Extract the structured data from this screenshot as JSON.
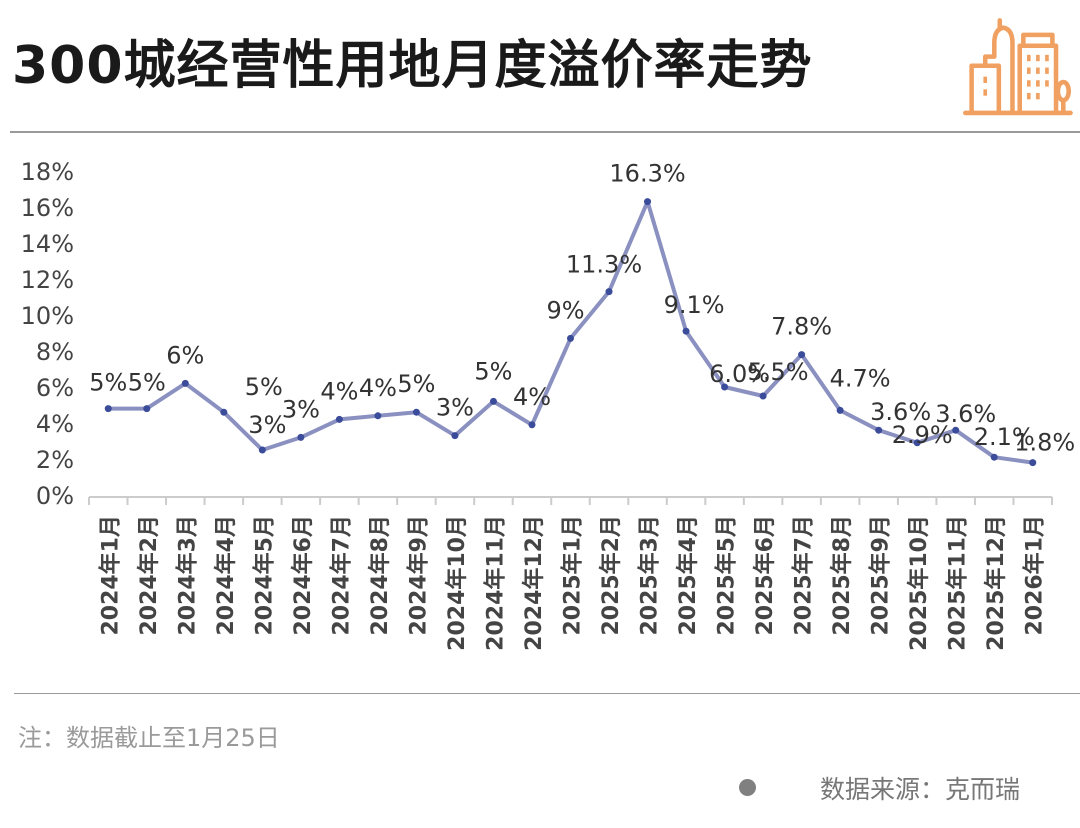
{
  "header": {
    "title": "300城经营性用地月度溢价率走势",
    "logo_icon": "city-buildings-icon",
    "logo_color": "#F0A060"
  },
  "footer": {
    "note": "注：数据截止至1月25日",
    "source": "数据来源：克而瑞"
  },
  "colors": {
    "line": "#8A90C0",
    "marker": "#3B4C9A",
    "label": "#333333",
    "axis": "#cccccc"
  },
  "chart_data": {
    "type": "line",
    "title": "300城经营性用地月度溢价率走势",
    "xlabel": "",
    "ylabel": "",
    "ylim": [
      0,
      18
    ],
    "yticks": [
      "0%",
      "2%",
      "4%",
      "6%",
      "8%",
      "10%",
      "12%",
      "14%",
      "16%",
      "18%"
    ],
    "grid": false,
    "legend": "none",
    "categories": [
      "2024年1月",
      "2024年2月",
      "2024年3月",
      "2024年4月",
      "2024年5月",
      "2024年6月",
      "2024年7月",
      "2024年8月",
      "2024年9月",
      "2024年10月",
      "2024年11月",
      "2024年12月",
      "2025年1月",
      "2025年2月",
      "2025年3月",
      "2025年4月",
      "2025年5月",
      "2025年6月",
      "2025年7月",
      "2025年8月",
      "2025年9月",
      "2025年10月",
      "2025年11月",
      "2025年12月",
      "2026年1月"
    ],
    "series": [
      {
        "name": "溢价率",
        "values": [
          4.8,
          4.8,
          6.2,
          4.6,
          2.5,
          3.2,
          4.2,
          4.4,
          4.6,
          3.3,
          5.2,
          3.9,
          8.7,
          11.3,
          16.3,
          9.1,
          6.0,
          5.5,
          7.8,
          4.7,
          3.6,
          2.9,
          3.6,
          2.1,
          1.8
        ],
        "data_labels": [
          "5%",
          "5%",
          "6%",
          "5%",
          "3%",
          "3%",
          "4%",
          "4%",
          "5%",
          "3%",
          "5%",
          "4%",
          "9%",
          "11.3%",
          "16.3%",
          "9.1%",
          "6.0%",
          "5.5%",
          "7.8%",
          "4.7%",
          "3.6%",
          "2.9%",
          "3.6%",
          "2.1%",
          "1.8%"
        ]
      }
    ]
  }
}
